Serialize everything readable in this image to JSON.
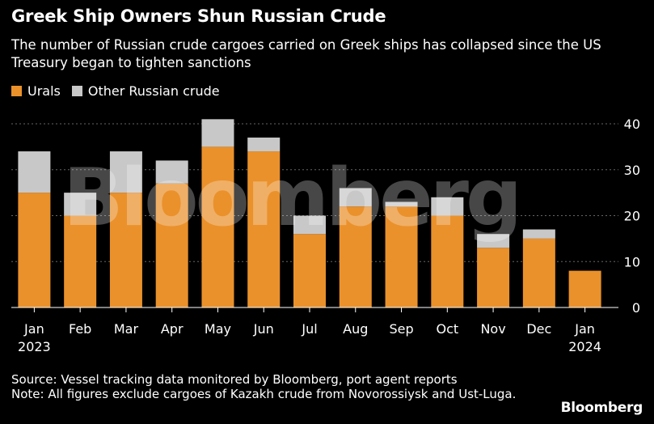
{
  "title": "Greek Ship Owners Shun Russian Crude",
  "subtitle": "The number of Russian crude cargoes carried on Greek ships has collapsed since the US Treasury began to tighten sanctions",
  "source": "Source: Vessel tracking data monitored by Bloomberg, port agent reports",
  "note": "Note: All figures exclude cargoes of Kazakh crude from Novorossiysk and Ust-Luga.",
  "brand": "Bloomberg",
  "watermark": "Bloomberg",
  "colors": {
    "urals": "#ea912b",
    "other": "#c8c8c8",
    "background": "#000000",
    "grid": "#666666"
  },
  "chart_data": {
    "type": "bar",
    "stacked": true,
    "categories": [
      "Jan",
      "Feb",
      "Mar",
      "Apr",
      "May",
      "Jun",
      "Jul",
      "Aug",
      "Sep",
      "Oct",
      "Nov",
      "Dec",
      "Jan"
    ],
    "year_labels": [
      "2023",
      "",
      "",
      "",
      "",
      "",
      "",
      "",
      "",
      "",
      "",
      "",
      "2024"
    ],
    "series": [
      {
        "name": "Urals",
        "values": [
          25,
          20,
          25,
          27,
          35,
          34,
          16,
          22,
          22,
          20,
          13,
          15,
          8
        ]
      },
      {
        "name": "Other Russian crude",
        "values": [
          9,
          5,
          9,
          5,
          6,
          3,
          4,
          4,
          1,
          4,
          3,
          2,
          0
        ]
      }
    ],
    "ylim": [
      0,
      40
    ],
    "yticks": [
      0,
      10,
      20,
      30,
      40
    ],
    "y_axis_side": "right",
    "grid": true,
    "legend_position": "top-left"
  }
}
